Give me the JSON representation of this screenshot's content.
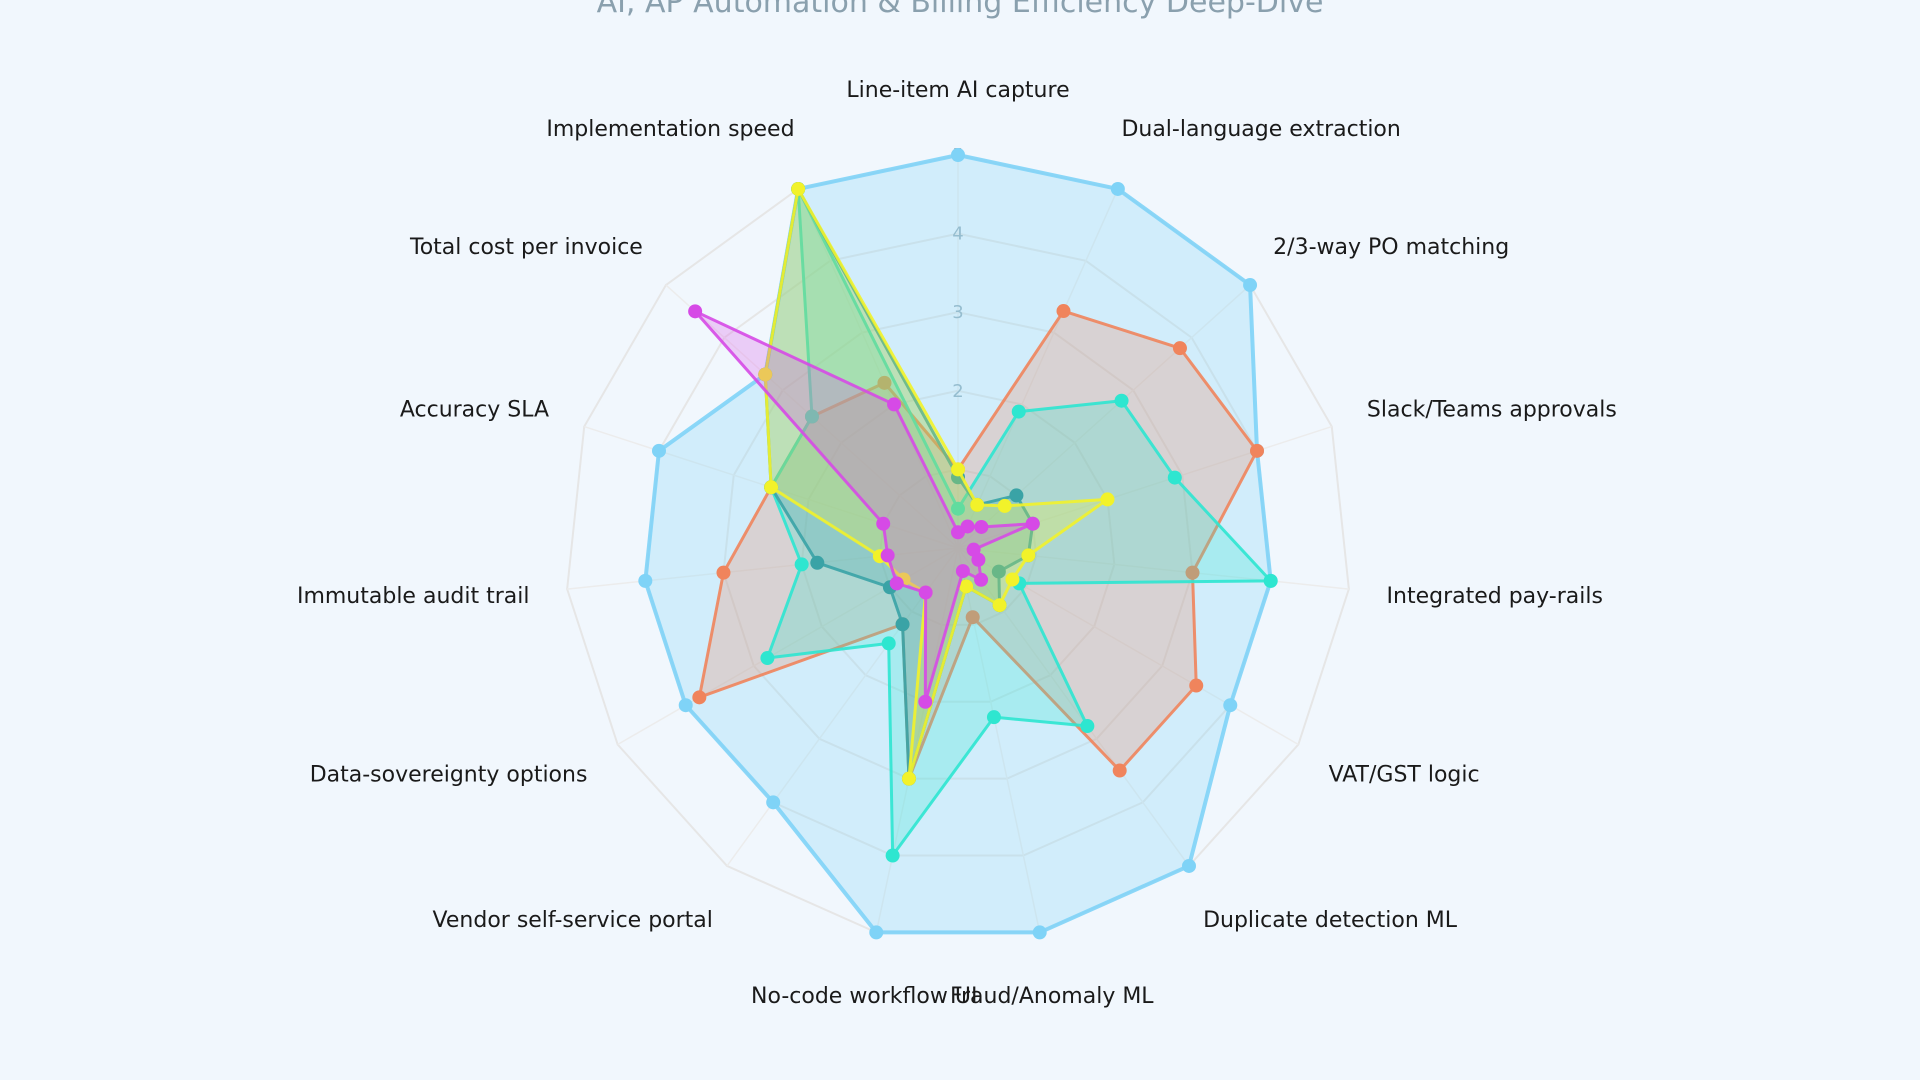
{
  "chart_data": {
    "type": "radar",
    "title": "AI, AP Automation & Billing Efficiency Deep-Dive",
    "axes": [
      "Line-item AI capture",
      "Dual-language extraction",
      "2/3-way PO matching",
      "Slack/Teams approvals",
      "Integrated pay-rails",
      "VAT/GST logic",
      "Duplicate detection ML",
      "Fraud/Anomaly ML",
      "No-code workflow UI",
      "Vendor self-service portal",
      "Data-sovereignty options",
      "Immutable audit trail",
      "Accuracy SLA",
      "Total cost per invoice",
      "Implementation speed"
    ],
    "range": [
      0,
      5
    ],
    "ticks": [
      1,
      2,
      3,
      4,
      5
    ],
    "grid": true,
    "legend": "none",
    "series": [
      {
        "color": "#7fd3f7",
        "values": [
          5,
          5,
          5,
          4,
          4,
          4,
          5,
          5,
          5,
          4,
          4,
          4,
          4,
          3.3,
          5
        ]
      },
      {
        "color": "#f0845c",
        "values": [
          1,
          3.3,
          3.8,
          4,
          3,
          3.5,
          3.5,
          0.9,
          3,
          1.2,
          3.8,
          3,
          2.5,
          2.5,
          2.3
        ]
      },
      {
        "color": "#2ee6d0",
        "values": [
          0.5,
          1.9,
          2.8,
          2.9,
          4,
          0.9,
          2.8,
          2.2,
          4,
          1.5,
          2.8,
          2,
          2.5,
          2.5,
          5
        ]
      },
      {
        "color": "#3aa3a6",
        "values": [
          0.9,
          0.6,
          1,
          1,
          0.9,
          0.6,
          0.9,
          0.5,
          3,
          1.2,
          1,
          1.8,
          2.5,
          3.3,
          5
        ]
      },
      {
        "color": "#f2f22a",
        "values": [
          1,
          0.6,
          0.8,
          2,
          0.9,
          0.8,
          0.9,
          0.5,
          3,
          0.7,
          0.8,
          1,
          2.5,
          3.3,
          5
        ]
      },
      {
        "color": "#d64ae6",
        "values": [
          0.2,
          0.3,
          0.4,
          1,
          0.2,
          0.3,
          0.5,
          0.3,
          2,
          0.7,
          0.9,
          0.9,
          1,
          4.5,
          2
        ]
      }
    ]
  }
}
